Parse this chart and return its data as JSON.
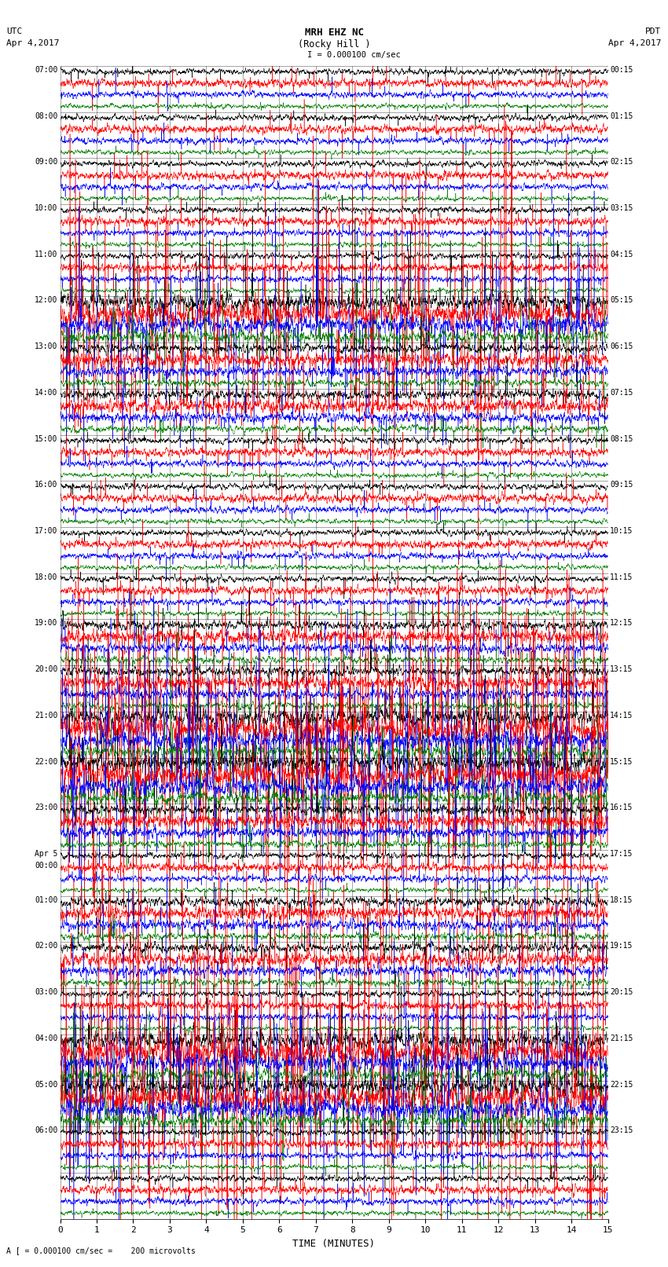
{
  "title_line1": "MRH EHZ NC",
  "title_line2": "(Rocky Hill )",
  "title_line3": "I = 0.000100 cm/sec",
  "left_header_line1": "UTC",
  "left_header_line2": "Apr 4,2017",
  "right_header_line1": "PDT",
  "right_header_line2": "Apr 4,2017",
  "xlabel": "TIME (MINUTES)",
  "bottom_note": "A [ = 0.000100 cm/sec =    200 microvolts",
  "left_times": [
    [
      "07:00",
      true
    ],
    [
      "",
      false
    ],
    [
      "",
      false
    ],
    [
      "",
      false
    ],
    [
      "08:00",
      true
    ],
    [
      "",
      false
    ],
    [
      "",
      false
    ],
    [
      "",
      false
    ],
    [
      "09:00",
      true
    ],
    [
      "",
      false
    ],
    [
      "",
      false
    ],
    [
      "",
      false
    ],
    [
      "10:00",
      true
    ],
    [
      "",
      false
    ],
    [
      "",
      false
    ],
    [
      "",
      false
    ],
    [
      "11:00",
      true
    ],
    [
      "",
      false
    ],
    [
      "",
      false
    ],
    [
      "",
      false
    ],
    [
      "12:00",
      true
    ],
    [
      "",
      false
    ],
    [
      "",
      false
    ],
    [
      "",
      false
    ],
    [
      "13:00",
      true
    ],
    [
      "",
      false
    ],
    [
      "",
      false
    ],
    [
      "",
      false
    ],
    [
      "14:00",
      true
    ],
    [
      "",
      false
    ],
    [
      "",
      false
    ],
    [
      "",
      false
    ],
    [
      "15:00",
      true
    ],
    [
      "",
      false
    ],
    [
      "",
      false
    ],
    [
      "",
      false
    ],
    [
      "16:00",
      true
    ],
    [
      "",
      false
    ],
    [
      "",
      false
    ],
    [
      "",
      false
    ],
    [
      "17:00",
      true
    ],
    [
      "",
      false
    ],
    [
      "",
      false
    ],
    [
      "",
      false
    ],
    [
      "18:00",
      true
    ],
    [
      "",
      false
    ],
    [
      "",
      false
    ],
    [
      "",
      false
    ],
    [
      "19:00",
      true
    ],
    [
      "",
      false
    ],
    [
      "",
      false
    ],
    [
      "",
      false
    ],
    [
      "20:00",
      true
    ],
    [
      "",
      false
    ],
    [
      "",
      false
    ],
    [
      "",
      false
    ],
    [
      "21:00",
      true
    ],
    [
      "",
      false
    ],
    [
      "",
      false
    ],
    [
      "",
      false
    ],
    [
      "22:00",
      true
    ],
    [
      "",
      false
    ],
    [
      "",
      false
    ],
    [
      "",
      false
    ],
    [
      "23:00",
      true
    ],
    [
      "",
      false
    ],
    [
      "",
      false
    ],
    [
      "",
      false
    ],
    [
      "Apr 5",
      true
    ],
    [
      "00:00",
      true
    ],
    [
      "",
      false
    ],
    [
      "",
      false
    ],
    [
      "01:00",
      true
    ],
    [
      "",
      false
    ],
    [
      "",
      false
    ],
    [
      "",
      false
    ],
    [
      "02:00",
      true
    ],
    [
      "",
      false
    ],
    [
      "",
      false
    ],
    [
      "",
      false
    ],
    [
      "03:00",
      true
    ],
    [
      "",
      false
    ],
    [
      "",
      false
    ],
    [
      "",
      false
    ],
    [
      "04:00",
      true
    ],
    [
      "",
      false
    ],
    [
      "",
      false
    ],
    [
      "",
      false
    ],
    [
      "05:00",
      true
    ],
    [
      "",
      false
    ],
    [
      "",
      false
    ],
    [
      "",
      false
    ],
    [
      "06:00",
      true
    ],
    [
      "",
      false
    ],
    [
      "",
      false
    ],
    [
      "",
      false
    ]
  ],
  "right_times": [
    [
      "00:15",
      true
    ],
    [
      "",
      false
    ],
    [
      "",
      false
    ],
    [
      "",
      false
    ],
    [
      "01:15",
      true
    ],
    [
      "",
      false
    ],
    [
      "",
      false
    ],
    [
      "",
      false
    ],
    [
      "02:15",
      true
    ],
    [
      "",
      false
    ],
    [
      "",
      false
    ],
    [
      "",
      false
    ],
    [
      "03:15",
      true
    ],
    [
      "",
      false
    ],
    [
      "",
      false
    ],
    [
      "",
      false
    ],
    [
      "04:15",
      true
    ],
    [
      "",
      false
    ],
    [
      "",
      false
    ],
    [
      "",
      false
    ],
    [
      "05:15",
      true
    ],
    [
      "",
      false
    ],
    [
      "",
      false
    ],
    [
      "",
      false
    ],
    [
      "06:15",
      true
    ],
    [
      "",
      false
    ],
    [
      "",
      false
    ],
    [
      "",
      false
    ],
    [
      "07:15",
      true
    ],
    [
      "",
      false
    ],
    [
      "",
      false
    ],
    [
      "",
      false
    ],
    [
      "08:15",
      true
    ],
    [
      "",
      false
    ],
    [
      "",
      false
    ],
    [
      "",
      false
    ],
    [
      "09:15",
      true
    ],
    [
      "",
      false
    ],
    [
      "",
      false
    ],
    [
      "",
      false
    ],
    [
      "10:15",
      true
    ],
    [
      "",
      false
    ],
    [
      "",
      false
    ],
    [
      "",
      false
    ],
    [
      "11:15",
      true
    ],
    [
      "",
      false
    ],
    [
      "",
      false
    ],
    [
      "",
      false
    ],
    [
      "12:15",
      true
    ],
    [
      "",
      false
    ],
    [
      "",
      false
    ],
    [
      "",
      false
    ],
    [
      "13:15",
      true
    ],
    [
      "",
      false
    ],
    [
      "",
      false
    ],
    [
      "",
      false
    ],
    [
      "14:15",
      true
    ],
    [
      "",
      false
    ],
    [
      "",
      false
    ],
    [
      "",
      false
    ],
    [
      "15:15",
      true
    ],
    [
      "",
      false
    ],
    [
      "",
      false
    ],
    [
      "",
      false
    ],
    [
      "16:15",
      true
    ],
    [
      "",
      false
    ],
    [
      "",
      false
    ],
    [
      "",
      false
    ],
    [
      "17:15",
      true
    ],
    [
      "",
      false
    ],
    [
      "",
      false
    ],
    [
      "",
      false
    ],
    [
      "18:15",
      true
    ],
    [
      "",
      false
    ],
    [
      "",
      false
    ],
    [
      "",
      false
    ],
    [
      "19:15",
      true
    ],
    [
      "",
      false
    ],
    [
      "",
      false
    ],
    [
      "",
      false
    ],
    [
      "20:15",
      true
    ],
    [
      "",
      false
    ],
    [
      "",
      false
    ],
    [
      "",
      false
    ],
    [
      "21:15",
      true
    ],
    [
      "",
      false
    ],
    [
      "",
      false
    ],
    [
      "",
      false
    ],
    [
      "22:15",
      true
    ],
    [
      "",
      false
    ],
    [
      "",
      false
    ],
    [
      "",
      false
    ],
    [
      "23:15",
      true
    ],
    [
      "",
      false
    ],
    [
      "",
      false
    ],
    [
      "",
      false
    ],
    [
      "",
      false
    ],
    [
      "",
      false
    ],
    [
      "",
      false
    ],
    [
      "",
      false
    ]
  ],
  "n_rows": 25,
  "n_traces_per_row": 4,
  "colors": [
    "black",
    "red",
    "blue",
    "green"
  ],
  "bg_color": "white",
  "x_ticks": [
    0,
    1,
    2,
    3,
    4,
    5,
    6,
    7,
    8,
    9,
    10,
    11,
    12,
    13,
    14,
    15
  ],
  "x_lim": [
    0,
    15
  ],
  "seed": 42
}
